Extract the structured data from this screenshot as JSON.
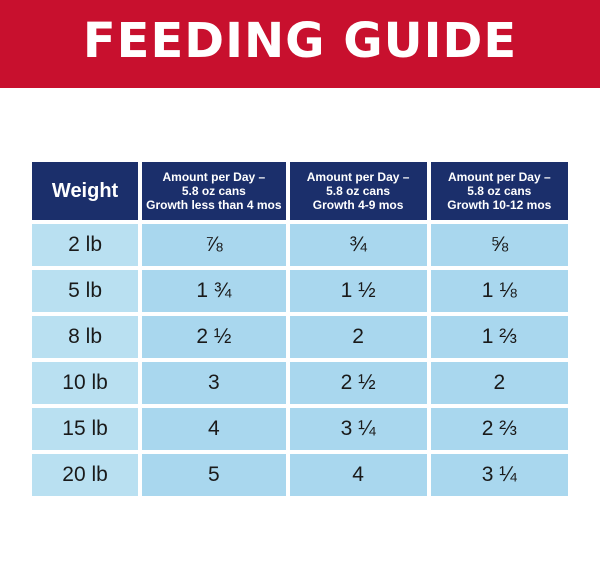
{
  "banner": {
    "title": "FEEDING GUIDE"
  },
  "table": {
    "headers": {
      "weight": "Weight",
      "columns": [
        [
          "Amount per Day –",
          "5.8 oz cans",
          "Growth less than 4 mos"
        ],
        [
          "Amount per Day –",
          "5.8 oz cans",
          "Growth 4-9 mos"
        ],
        [
          "Amount per Day –",
          "5.8 oz cans",
          "Growth 10-12 mos"
        ]
      ]
    },
    "rows": [
      {
        "weight": "2 lb",
        "values": [
          "⅞",
          "¾",
          "⅝"
        ]
      },
      {
        "weight": "5 lb",
        "values": [
          "1 ¾",
          "1 ½",
          "1 ⅛"
        ]
      },
      {
        "weight": "8 lb",
        "values": [
          "2 ½",
          "2",
          "1 ⅔"
        ]
      },
      {
        "weight": "10 lb",
        "values": [
          "3",
          "2 ½",
          "2"
        ]
      },
      {
        "weight": "15 lb",
        "values": [
          "4",
          "3 ¼",
          "2 ⅔"
        ]
      },
      {
        "weight": "20 lb",
        "values": [
          "5",
          "4",
          "3 ¼"
        ]
      }
    ]
  },
  "colors": {
    "banner": "#c8102e",
    "header": "#1b2f6b",
    "cell": "#a9d7ee",
    "weight_cell": "#b9e0f1"
  }
}
